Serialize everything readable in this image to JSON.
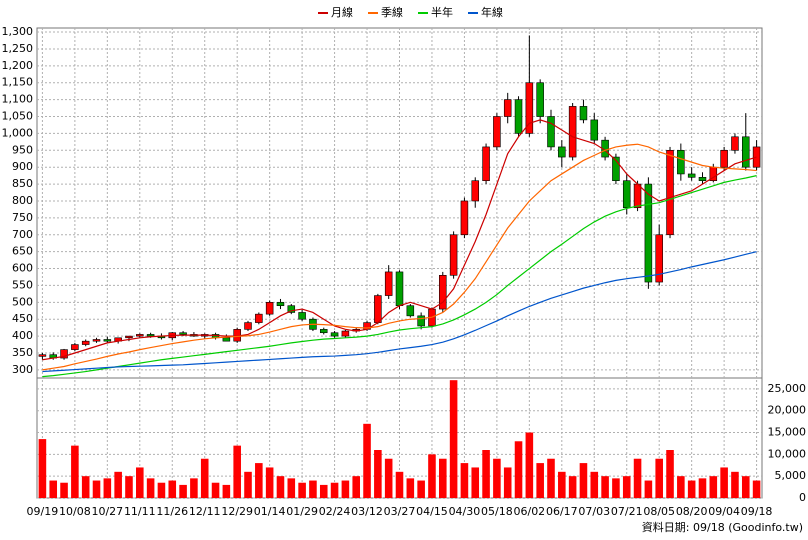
{
  "chart_data": {
    "type": "candlestick",
    "categories": [
      "09/19",
      null,
      null,
      "10/08",
      null,
      null,
      "10/27",
      null,
      null,
      "11/11",
      null,
      null,
      "11/26",
      null,
      null,
      "12/11",
      null,
      null,
      "12/29",
      null,
      null,
      "01/14",
      null,
      null,
      "01/29",
      null,
      null,
      "02/24",
      null,
      null,
      "03/12",
      null,
      null,
      "03/27",
      null,
      null,
      "04/15",
      null,
      null,
      "04/30",
      null,
      null,
      "05/18",
      null,
      null,
      "06/02",
      null,
      null,
      "06/17",
      null,
      null,
      "07/03",
      null,
      null,
      "07/21",
      null,
      null,
      "08/05",
      null,
      null,
      "08/20",
      null,
      null,
      "09/04",
      null,
      null,
      "09/18"
    ],
    "open": [
      340,
      345,
      335,
      360,
      375,
      385,
      390,
      385,
      395,
      400,
      405,
      400,
      395,
      410,
      405,
      400,
      405,
      395,
      385,
      420,
      440,
      465,
      500,
      490,
      470,
      450,
      420,
      410,
      400,
      415,
      420,
      440,
      520,
      590,
      490,
      460,
      430,
      480,
      580,
      700,
      800,
      860,
      960,
      1050,
      1100,
      1000,
      1150,
      1050,
      960,
      930,
      1080,
      1040,
      980,
      930,
      860,
      780,
      850,
      560,
      700,
      950,
      880,
      870,
      860,
      900,
      950,
      990,
      900
    ],
    "high": [
      350,
      352,
      362,
      380,
      390,
      395,
      398,
      395,
      400,
      408,
      410,
      408,
      412,
      415,
      412,
      408,
      410,
      405,
      425,
      445,
      470,
      505,
      510,
      495,
      478,
      455,
      425,
      415,
      418,
      425,
      445,
      525,
      610,
      595,
      495,
      470,
      485,
      590,
      710,
      810,
      870,
      970,
      1060,
      1120,
      1110,
      1290,
      1160,
      1070,
      980,
      1090,
      1100,
      1060,
      990,
      940,
      880,
      860,
      870,
      730,
      960,
      970,
      900,
      885,
      910,
      960,
      1000,
      1060,
      980
    ],
    "low": [
      330,
      330,
      330,
      355,
      370,
      380,
      380,
      378,
      385,
      395,
      395,
      390,
      388,
      400,
      398,
      392,
      390,
      385,
      380,
      415,
      435,
      460,
      480,
      465,
      445,
      415,
      405,
      395,
      395,
      410,
      415,
      435,
      510,
      480,
      455,
      420,
      425,
      470,
      570,
      690,
      780,
      850,
      950,
      1030,
      990,
      990,
      1030,
      950,
      900,
      920,
      1030,
      970,
      920,
      850,
      760,
      770,
      540,
      550,
      690,
      860,
      860,
      850,
      855,
      890,
      940,
      890,
      890
    ],
    "close": [
      345,
      335,
      360,
      375,
      385,
      390,
      385,
      395,
      400,
      405,
      400,
      395,
      410,
      405,
      400,
      405,
      395,
      385,
      420,
      440,
      465,
      500,
      490,
      470,
      450,
      420,
      410,
      400,
      415,
      420,
      440,
      520,
      590,
      490,
      460,
      430,
      480,
      580,
      700,
      800,
      860,
      960,
      1050,
      1100,
      1000,
      1150,
      1050,
      960,
      930,
      1080,
      1040,
      980,
      930,
      860,
      780,
      850,
      560,
      700,
      950,
      880,
      870,
      860,
      900,
      950,
      990,
      900,
      960
    ],
    "up_color": "#ff0000",
    "down_color": "#00a000",
    "series": [
      {
        "name": "月線",
        "color": "#cc0000",
        "values": [
          330,
          335,
          340,
          350,
          360,
          370,
          380,
          385,
          390,
          395,
          398,
          400,
          402,
          403,
          403,
          403,
          402,
          400,
          400,
          405,
          420,
          440,
          460,
          475,
          480,
          470,
          450,
          430,
          420,
          415,
          420,
          440,
          470,
          490,
          500,
          490,
          480,
          500,
          540,
          610,
          680,
          760,
          850,
          940,
          990,
          1030,
          1040,
          1030,
          1010,
          990,
          980,
          970,
          950,
          920,
          880,
          850,
          820,
          800,
          810,
          820,
          830,
          850,
          870,
          890,
          910,
          920,
          930
        ]
      },
      {
        "name": "季線",
        "color": "#ff6600",
        "values": [
          300,
          305,
          310,
          318,
          325,
          332,
          340,
          347,
          353,
          360,
          366,
          372,
          378,
          383,
          388,
          392,
          395,
          397,
          399,
          401,
          405,
          412,
          420,
          428,
          433,
          435,
          434,
          432,
          428,
          425,
          424,
          428,
          438,
          445,
          450,
          452,
          456,
          470,
          495,
          530,
          570,
          620,
          670,
          720,
          760,
          800,
          830,
          860,
          880,
          900,
          920,
          935,
          950,
          960,
          965,
          968,
          960,
          945,
          935,
          925,
          915,
          905,
          900,
          897,
          895,
          893,
          890
        ]
      },
      {
        "name": "半年",
        "color": "#00cc00",
        "values": [
          280,
          283,
          287,
          291,
          295,
          300,
          305,
          310,
          315,
          320,
          325,
          330,
          334,
          338,
          342,
          346,
          350,
          354,
          358,
          362,
          366,
          370,
          375,
          380,
          384,
          388,
          391,
          393,
          395,
          397,
          400,
          405,
          412,
          418,
          422,
          425,
          428,
          436,
          448,
          463,
          480,
          500,
          523,
          550,
          575,
          600,
          625,
          650,
          672,
          695,
          718,
          738,
          755,
          768,
          778,
          785,
          790,
          795,
          805,
          815,
          825,
          835,
          845,
          855,
          862,
          868,
          875
        ]
      },
      {
        "name": "年線",
        "color": "#0055cc",
        "values": [
          295,
          297,
          299,
          301,
          303,
          305,
          307,
          309,
          310,
          311,
          312,
          313,
          314,
          315,
          317,
          319,
          321,
          323,
          325,
          327,
          329,
          331,
          333,
          335,
          337,
          339,
          340,
          341,
          343,
          345,
          348,
          352,
          357,
          362,
          366,
          370,
          375,
          382,
          392,
          404,
          417,
          431,
          445,
          460,
          474,
          488,
          500,
          512,
          522,
          532,
          542,
          550,
          558,
          565,
          570,
          574,
          578,
          583,
          590,
          597,
          605,
          612,
          619,
          626,
          634,
          642,
          650
        ]
      }
    ],
    "ylim": [
      276,
      1312
    ],
    "yticks": [
      300,
      350,
      400,
      450,
      500,
      550,
      600,
      650,
      700,
      750,
      800,
      850,
      900,
      950,
      {
        "value": 1000,
        "label": "1,000"
      },
      {
        "value": 1050,
        "label": "1,050"
      },
      {
        "value": 1100,
        "label": "1,100"
      },
      {
        "value": 1150,
        "label": "1,150"
      },
      {
        "value": 1200,
        "label": "1,200"
      },
      {
        "value": 1250,
        "label": "1,250"
      },
      {
        "value": 1300,
        "label": "1,300"
      }
    ],
    "grid": true,
    "volume": {
      "color": "#ff0000",
      "values": [
        13500,
        4000,
        3500,
        12000,
        5000,
        4000,
        4500,
        6000,
        5000,
        7000,
        4500,
        3500,
        4000,
        3000,
        4500,
        9000,
        3500,
        3000,
        12000,
        6000,
        8000,
        7000,
        5000,
        4500,
        3500,
        4000,
        3000,
        3500,
        4000,
        5000,
        17000,
        11000,
        9000,
        6000,
        4500,
        4000,
        10000,
        9000,
        27000,
        8000,
        7000,
        11000,
        9000,
        7000,
        13000,
        15000,
        8000,
        9000,
        6000,
        5000,
        8000,
        6000,
        5000,
        4500,
        5000,
        9000,
        4000,
        9000,
        11000,
        5000,
        4000,
        4500,
        5000,
        7000,
        6000,
        5000,
        4000
      ],
      "ylim": [
        0,
        27500
      ],
      "yticks": [
        0,
        {
          "value": 5000,
          "label": "5,000"
        },
        {
          "value": 10000,
          "label": "10,000"
        },
        {
          "value": 15000,
          "label": "15,000"
        },
        {
          "value": 20000,
          "label": "20,000"
        },
        {
          "value": 25000,
          "label": "25,000"
        }
      ]
    },
    "footer": "資料日期: 09/18 (Goodinfo.tw)"
  }
}
